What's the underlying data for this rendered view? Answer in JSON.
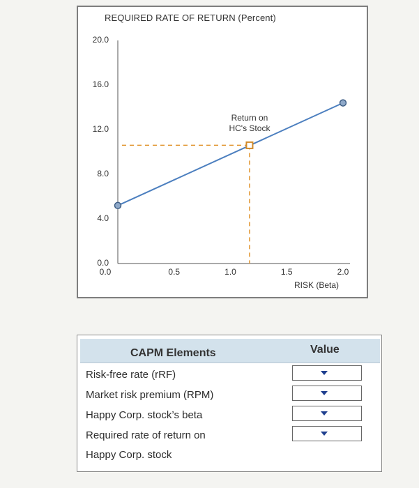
{
  "chart_data": {
    "type": "line",
    "title": "REQUIRED RATE OF RETURN (Percent)",
    "xlabel": "RISK (Beta)",
    "ylabel": "",
    "xlim": [
      0,
      2.0
    ],
    "ylim": [
      0,
      20.0
    ],
    "x_ticks": [
      "0.0",
      "0.5",
      "1.0",
      "1.5",
      "2.0"
    ],
    "y_ticks": [
      "0.0",
      "4.0",
      "8.0",
      "12.0",
      "16.0",
      "20.0"
    ],
    "series": [
      {
        "x": [
          0.0,
          2.0
        ],
        "y": [
          5.2,
          14.4
        ]
      }
    ],
    "point_marker": {
      "x": 1.17,
      "y": 10.6,
      "color": "#d18a2a"
    },
    "annotation": {
      "line1": "Return on",
      "line2": "HC's Stock",
      "x": 1.17,
      "y": 10.6
    },
    "grid": false,
    "line_color": "#4c7fbf",
    "guide_color": "#e1952f"
  },
  "table": {
    "header_elements": "CAPM Elements",
    "header_value": "Value",
    "rows": [
      {
        "label": "Risk-free rate (rRF)"
      },
      {
        "label": "Market risk premium (RPM)"
      },
      {
        "label": "Happy Corp. stock’s beta"
      },
      {
        "label": "Required rate of return on"
      },
      {
        "label": "Happy Corp. stock"
      }
    ],
    "dropdown_count": 4
  },
  "colors": {
    "header_bg": "#d3e2ec",
    "caret": "#1f3f8f"
  }
}
